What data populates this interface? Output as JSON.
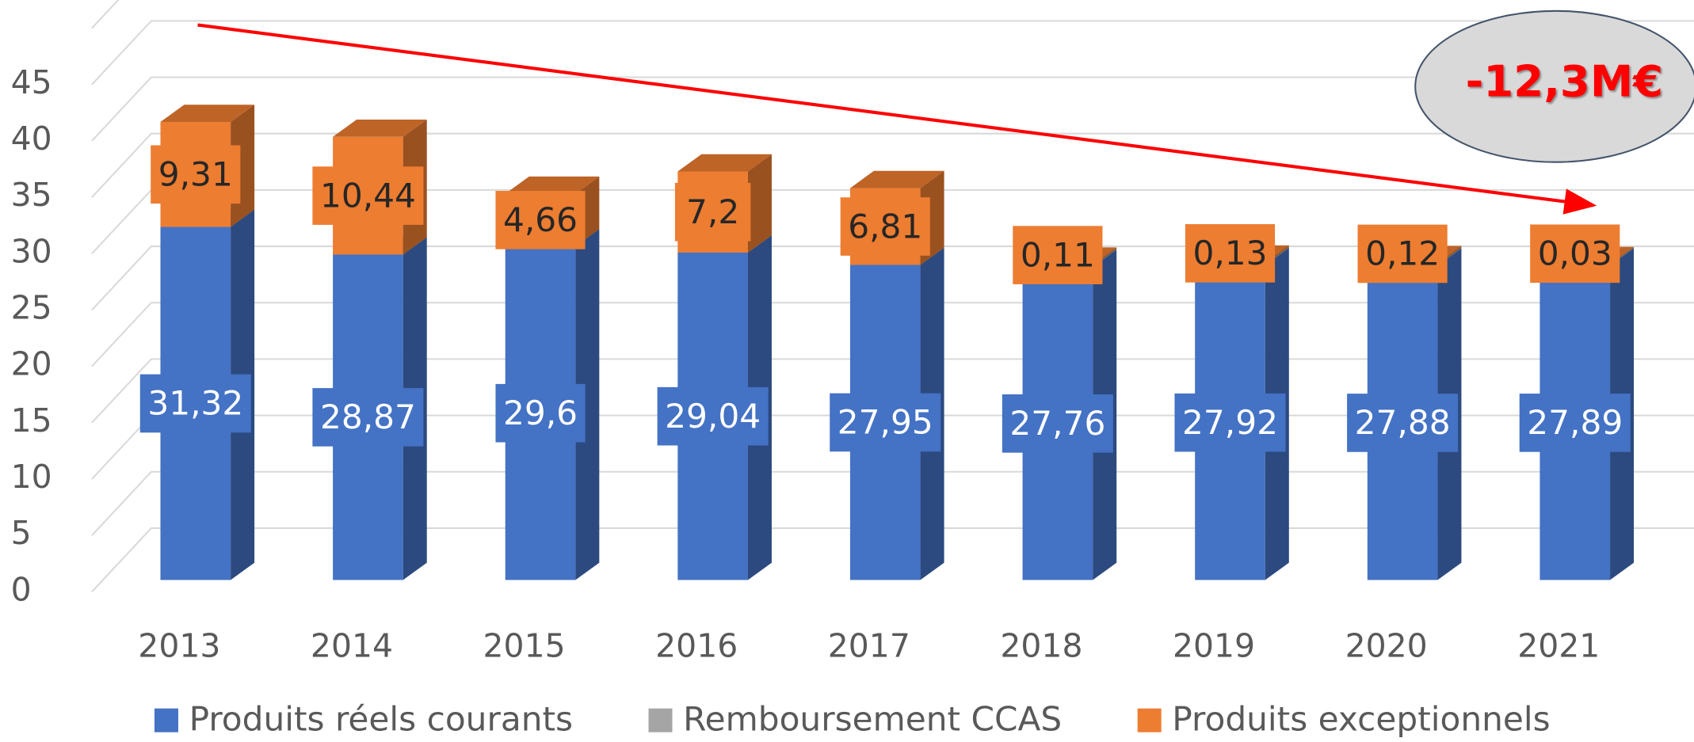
{
  "chart_data": {
    "type": "bar3d_stacked",
    "categories": [
      "2013",
      "2014",
      "2015",
      "2016",
      "2017",
      "2018",
      "2019",
      "2020",
      "2021"
    ],
    "series": [
      {
        "name": "Produits réels courants",
        "color": "#4472c4",
        "values": [
          31.32,
          28.87,
          29.6,
          29.04,
          27.95,
          27.76,
          27.92,
          27.88,
          27.89
        ],
        "value_labels": [
          "31,32",
          "28,87",
          "29,6",
          "29,04",
          "27,95",
          "27,76",
          "27,92",
          "27,88",
          "27,89"
        ]
      },
      {
        "name": "Remboursement CCAS",
        "color": "#a5a5a5",
        "values": [
          0,
          0,
          0,
          0,
          0,
          0.1,
          0.1,
          0.1,
          0.1
        ]
      },
      {
        "name": "Produits exceptionnels",
        "color": "#ed7d31",
        "values": [
          9.31,
          10.44,
          4.66,
          7.2,
          6.81,
          0.11,
          0.13,
          0.12,
          0.03
        ],
        "value_labels": [
          "9,31",
          "10,44",
          "4,66",
          "7,2",
          "6,81",
          "0,11",
          "0,13",
          "0,12",
          "0,03"
        ]
      }
    ],
    "ylim": [
      0,
      50
    ],
    "yticks": [
      0,
      5,
      10,
      15,
      20,
      25,
      30,
      35,
      40,
      45
    ],
    "grid": true,
    "annotation": "-12,3M€",
    "legend": "bottom"
  }
}
